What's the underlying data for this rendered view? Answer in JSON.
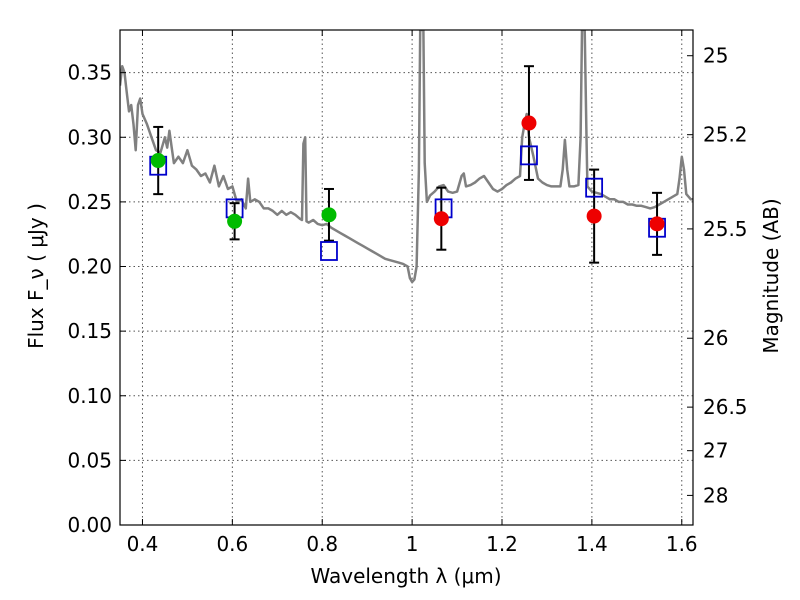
{
  "chart_data": {
    "type": "scatter",
    "xlabel": "Wavelength  λ (μm)",
    "ylabel": "Flux  F_ν  ( μJy )",
    "ylabel_right": "Magnitude (AB)",
    "xlim": [
      0.35,
      1.625
    ],
    "ylim": [
      0.0,
      0.383
    ],
    "grid": true,
    "x_ticks": [
      0.4,
      0.6,
      0.8,
      1.0,
      1.2,
      1.4,
      1.6
    ],
    "x_tick_labels": [
      "0.4",
      "0.6",
      "0.8",
      "1",
      "1.2",
      "1.4",
      "1.6"
    ],
    "y_ticks": [
      0.0,
      0.05,
      0.1,
      0.15,
      0.2,
      0.25,
      0.3,
      0.35
    ],
    "y_tick_labels": [
      "0.00",
      "0.05",
      "0.10",
      "0.15",
      "0.20",
      "0.25",
      "0.30",
      "0.35"
    ],
    "right_ticks": [
      {
        "label": "25",
        "flux": 0.3631
      },
      {
        "label": "25.2",
        "flux": 0.302
      },
      {
        "label": "25.5",
        "flux": 0.2291
      },
      {
        "label": "26",
        "flux": 0.1445
      },
      {
        "label": "26.5",
        "flux": 0.0912
      },
      {
        "label": "27",
        "flux": 0.0575
      },
      {
        "label": "28",
        "flux": 0.0229
      }
    ],
    "colors": {
      "model": "#808080",
      "green": "#00bb00",
      "red": "#ee0000",
      "blue": "#0000cc",
      "errorbar": "#000000",
      "grid": "#555555"
    },
    "series": [
      {
        "name": "model spectrum",
        "kind": "line",
        "points": [
          [
            0.35,
            0.34
          ],
          [
            0.355,
            0.355
          ],
          [
            0.36,
            0.35
          ],
          [
            0.365,
            0.335
          ],
          [
            0.37,
            0.32
          ],
          [
            0.375,
            0.325
          ],
          [
            0.38,
            0.31
          ],
          [
            0.385,
            0.29
          ],
          [
            0.39,
            0.325
          ],
          [
            0.395,
            0.33
          ],
          [
            0.4,
            0.318
          ],
          [
            0.41,
            0.31
          ],
          [
            0.42,
            0.3
          ],
          [
            0.43,
            0.29
          ],
          [
            0.44,
            0.288
          ],
          [
            0.45,
            0.3
          ],
          [
            0.455,
            0.292
          ],
          [
            0.46,
            0.305
          ],
          [
            0.465,
            0.292
          ],
          [
            0.47,
            0.28
          ],
          [
            0.48,
            0.285
          ],
          [
            0.49,
            0.28
          ],
          [
            0.5,
            0.29
          ],
          [
            0.51,
            0.278
          ],
          [
            0.52,
            0.275
          ],
          [
            0.53,
            0.27
          ],
          [
            0.54,
            0.272
          ],
          [
            0.55,
            0.265
          ],
          [
            0.56,
            0.278
          ],
          [
            0.57,
            0.262
          ],
          [
            0.58,
            0.27
          ],
          [
            0.59,
            0.26
          ],
          [
            0.6,
            0.262
          ],
          [
            0.61,
            0.25
          ],
          [
            0.62,
            0.252
          ],
          [
            0.63,
            0.245
          ],
          [
            0.635,
            0.268
          ],
          [
            0.64,
            0.25
          ],
          [
            0.65,
            0.252
          ],
          [
            0.66,
            0.25
          ],
          [
            0.67,
            0.245
          ],
          [
            0.68,
            0.245
          ],
          [
            0.69,
            0.243
          ],
          [
            0.7,
            0.24
          ],
          [
            0.71,
            0.243
          ],
          [
            0.72,
            0.24
          ],
          [
            0.73,
            0.242
          ],
          [
            0.74,
            0.24
          ],
          [
            0.75,
            0.237
          ],
          [
            0.755,
            0.236
          ],
          [
            0.758,
            0.295
          ],
          [
            0.762,
            0.3
          ],
          [
            0.765,
            0.235
          ],
          [
            0.77,
            0.234
          ],
          [
            0.78,
            0.236
          ],
          [
            0.79,
            0.233
          ],
          [
            0.8,
            0.232
          ],
          [
            0.81,
            0.233
          ],
          [
            0.82,
            0.23
          ],
          [
            0.83,
            0.228
          ],
          [
            0.84,
            0.226
          ],
          [
            0.85,
            0.224
          ],
          [
            0.86,
            0.222
          ],
          [
            0.87,
            0.22
          ],
          [
            0.88,
            0.218
          ],
          [
            0.89,
            0.216
          ],
          [
            0.9,
            0.214
          ],
          [
            0.91,
            0.212
          ],
          [
            0.92,
            0.21
          ],
          [
            0.93,
            0.208
          ],
          [
            0.94,
            0.206
          ],
          [
            0.95,
            0.205
          ],
          [
            0.96,
            0.204
          ],
          [
            0.97,
            0.203
          ],
          [
            0.98,
            0.202
          ],
          [
            0.99,
            0.2
          ],
          [
            0.995,
            0.191
          ],
          [
            1.0,
            0.188
          ],
          [
            1.005,
            0.19
          ],
          [
            1.01,
            0.2
          ],
          [
            1.015,
            0.275
          ],
          [
            1.018,
            0.383
          ],
          [
            1.025,
            0.383
          ],
          [
            1.028,
            0.28
          ],
          [
            1.033,
            0.25
          ],
          [
            1.04,
            0.255
          ],
          [
            1.05,
            0.258
          ],
          [
            1.06,
            0.262
          ],
          [
            1.07,
            0.263
          ],
          [
            1.08,
            0.258
          ],
          [
            1.09,
            0.257
          ],
          [
            1.1,
            0.258
          ],
          [
            1.11,
            0.27
          ],
          [
            1.115,
            0.272
          ],
          [
            1.12,
            0.262
          ],
          [
            1.13,
            0.263
          ],
          [
            1.14,
            0.265
          ],
          [
            1.15,
            0.268
          ],
          [
            1.16,
            0.27
          ],
          [
            1.17,
            0.265
          ],
          [
            1.18,
            0.26
          ],
          [
            1.19,
            0.258
          ],
          [
            1.2,
            0.26
          ],
          [
            1.21,
            0.263
          ],
          [
            1.22,
            0.265
          ],
          [
            1.23,
            0.268
          ],
          [
            1.24,
            0.27
          ],
          [
            1.245,
            0.3
          ],
          [
            1.25,
            0.31
          ],
          [
            1.255,
            0.318
          ],
          [
            1.26,
            0.3
          ],
          [
            1.27,
            0.285
          ],
          [
            1.28,
            0.268
          ],
          [
            1.29,
            0.265
          ],
          [
            1.3,
            0.263
          ],
          [
            1.31,
            0.262
          ],
          [
            1.32,
            0.262
          ],
          [
            1.33,
            0.262
          ],
          [
            1.335,
            0.275
          ],
          [
            1.34,
            0.298
          ],
          [
            1.345,
            0.275
          ],
          [
            1.35,
            0.262
          ],
          [
            1.36,
            0.262
          ],
          [
            1.37,
            0.263
          ],
          [
            1.375,
            0.3
          ],
          [
            1.378,
            0.383
          ],
          [
            1.384,
            0.383
          ],
          [
            1.388,
            0.3
          ],
          [
            1.39,
            0.262
          ],
          [
            1.4,
            0.258
          ],
          [
            1.41,
            0.257
          ],
          [
            1.42,
            0.256
          ],
          [
            1.43,
            0.254
          ],
          [
            1.44,
            0.252
          ],
          [
            1.45,
            0.252
          ],
          [
            1.46,
            0.25
          ],
          [
            1.47,
            0.25
          ],
          [
            1.48,
            0.248
          ],
          [
            1.49,
            0.248
          ],
          [
            1.5,
            0.247
          ],
          [
            1.51,
            0.247
          ],
          [
            1.52,
            0.246
          ],
          [
            1.53,
            0.245
          ],
          [
            1.54,
            0.246
          ],
          [
            1.55,
            0.248
          ],
          [
            1.56,
            0.25
          ],
          [
            1.57,
            0.252
          ],
          [
            1.58,
            0.254
          ],
          [
            1.59,
            0.256
          ],
          [
            1.595,
            0.268
          ],
          [
            1.6,
            0.285
          ],
          [
            1.605,
            0.275
          ],
          [
            1.61,
            0.256
          ],
          [
            1.62,
            0.252
          ],
          [
            1.625,
            0.252
          ]
        ]
      },
      {
        "name": "green photometry",
        "kind": "marker-circle",
        "color": "green",
        "points": [
          {
            "x": 0.435,
            "y": 0.282,
            "err": 0.026
          },
          {
            "x": 0.605,
            "y": 0.235,
            "err": 0.014
          },
          {
            "x": 0.815,
            "y": 0.24,
            "err": 0.02
          }
        ]
      },
      {
        "name": "red photometry",
        "kind": "marker-circle",
        "color": "red",
        "points": [
          {
            "x": 1.065,
            "y": 0.237,
            "err": 0.024
          },
          {
            "x": 1.26,
            "y": 0.311,
            "err": 0.044
          },
          {
            "x": 1.405,
            "y": 0.239,
            "err": 0.036
          },
          {
            "x": 1.545,
            "y": 0.233,
            "err": 0.024
          }
        ]
      },
      {
        "name": "model synthetic photometry",
        "kind": "marker-square",
        "color": "blue",
        "points": [
          {
            "x": 0.435,
            "y": 0.278
          },
          {
            "x": 0.605,
            "y": 0.245
          },
          {
            "x": 0.815,
            "y": 0.212
          },
          {
            "x": 1.07,
            "y": 0.245
          },
          {
            "x": 1.26,
            "y": 0.286
          },
          {
            "x": 1.405,
            "y": 0.261
          },
          {
            "x": 1.545,
            "y": 0.23
          }
        ]
      }
    ]
  }
}
